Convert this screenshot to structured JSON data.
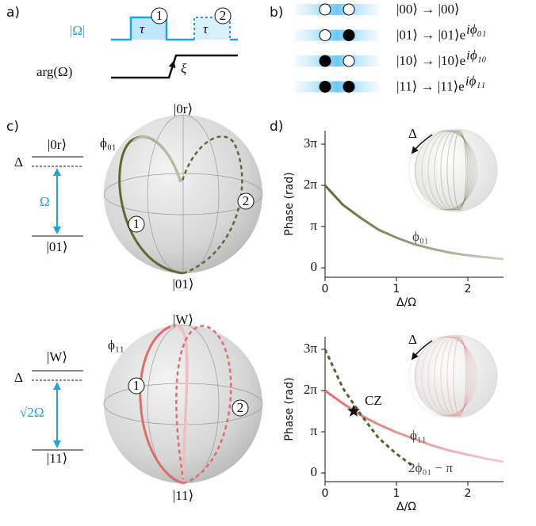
{
  "panel_a": {
    "label": "a)",
    "abs_omega": "|Ω|",
    "arg_omega": "arg(Ω)",
    "tau_1": "τ",
    "tau_2": "τ",
    "pulse_1": "1",
    "pulse_2": "2",
    "xi": "ξ"
  },
  "panel_b": {
    "label": "b)",
    "rows": [
      {
        "text": "|00⟩ → |00⟩",
        "exp": null
      },
      {
        "text": "|01⟩ → |01⟩e",
        "exp": "iϕ₀₁"
      },
      {
        "text": "|10⟩ → |10⟩e",
        "exp": "iϕ₁₀"
      },
      {
        "text": "|11⟩ → |11⟩e",
        "exp": "iϕ₁₁"
      }
    ]
  },
  "panel_c": {
    "label": "c)",
    "upper": {
      "delta": "Δ",
      "top_level": "|0r⟩",
      "drive": "Ω",
      "bottom_level": "|01⟩",
      "sphere_top": "|0r⟩",
      "sphere_bottom": "|01⟩",
      "phase": "ϕ₀₁",
      "pulse_1": "1",
      "pulse_2": "2"
    },
    "lower": {
      "delta": "Δ",
      "top_level": "|W⟩",
      "drive": "√2Ω",
      "bottom_level": "|11⟩",
      "sphere_top": "|W⟩",
      "sphere_bottom": "|11⟩",
      "phase": "ϕ₁₁",
      "pulse_1": "1",
      "pulse_2": "2"
    }
  },
  "panel_d": {
    "label": "d)"
  },
  "chart_data": [
    {
      "type": "line",
      "y_label": "Phase (rad)",
      "x_label": "Δ/Ω",
      "inset_label": "Δ",
      "x": [
        0,
        0.25,
        0.5,
        0.75,
        1.0,
        1.25,
        1.5,
        1.75,
        2.0,
        2.25,
        2.5
      ],
      "xlim": [
        0,
        2.5
      ],
      "ylim": [
        -0.72,
        10.45
      ],
      "xticks": [
        0,
        1,
        2
      ],
      "yticks": [
        0,
        {
          "value": 3.1416,
          "label": "π"
        },
        {
          "value": 6.2832,
          "label": "2π"
        },
        {
          "value": 9.4248,
          "label": "3π"
        }
      ],
      "series": [
        {
          "name": "ϕ₀₁",
          "color": "#5c6b2f",
          "fade_color": "#cfd1c0",
          "dashed": false,
          "values": [
            6.28,
            4.8,
            3.8,
            2.9,
            2.3,
            1.8,
            1.45,
            1.15,
            0.95,
            0.8,
            0.66
          ]
        }
      ]
    },
    {
      "type": "line",
      "y_label": "Phase (rad)",
      "x_label": "Δ/Ω",
      "inset_label": "Δ",
      "x": [
        0,
        0.25,
        0.5,
        0.75,
        1.0,
        1.25,
        1.5,
        1.75,
        2.0,
        2.25,
        2.5
      ],
      "xlim": [
        0,
        2.5
      ],
      "ylim": [
        -0.66,
        10.39
      ],
      "xticks": [
        0,
        1,
        2
      ],
      "yticks": [
        0,
        {
          "value": 3.1416,
          "label": "π"
        },
        {
          "value": 6.2832,
          "label": "2π"
        },
        {
          "value": 9.4248,
          "label": "3π"
        }
      ],
      "series": [
        {
          "name": "ϕ₁₁",
          "color": "#e06c6c",
          "fade_color": "#f3cfcf",
          "dashed": false,
          "values": [
            6.28,
            5.3,
            4.4,
            3.7,
            3.1,
            2.6,
            2.1,
            1.7,
            1.4,
            1.1,
            0.85
          ]
        },
        {
          "name": "2ϕ₀₁ − π",
          "color": "#55622b",
          "fade_color": "#55622b",
          "dashed": true,
          "values": [
            9.42,
            6.46,
            4.46,
            2.66,
            1.46,
            0.46,
            null,
            null,
            null,
            null,
            null
          ]
        }
      ],
      "annotations": [
        {
          "text": "CZ",
          "x": 0.4,
          "y": 4.71
        }
      ]
    }
  ]
}
